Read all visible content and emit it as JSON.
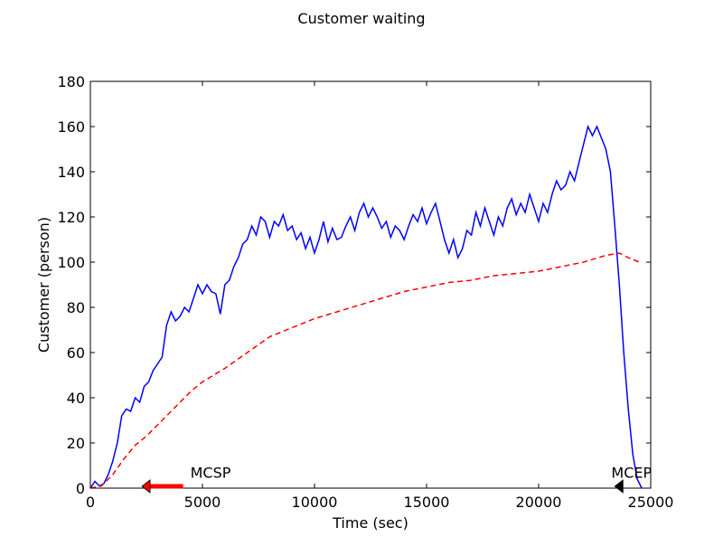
{
  "chart_data": {
    "type": "line",
    "title": "Customer waiting",
    "xlabel": "Time (sec)",
    "ylabel": "Customer (person)",
    "xlim": [
      0,
      25000
    ],
    "ylim": [
      0,
      180
    ],
    "grid": false,
    "x_ticks": [
      0,
      5000,
      10000,
      15000,
      20000,
      25000
    ],
    "y_ticks": [
      0,
      20,
      40,
      60,
      80,
      100,
      120,
      140,
      160,
      180
    ],
    "series": [
      {
        "color": "#0000ff",
        "style": "solid",
        "points": [
          [
            0,
            0
          ],
          [
            200,
            3
          ],
          [
            400,
            1
          ],
          [
            600,
            2
          ],
          [
            800,
            6
          ],
          [
            1000,
            12
          ],
          [
            1200,
            20
          ],
          [
            1400,
            32
          ],
          [
            1600,
            35
          ],
          [
            1800,
            34
          ],
          [
            2000,
            40
          ],
          [
            2200,
            38
          ],
          [
            2400,
            45
          ],
          [
            2600,
            47
          ],
          [
            2800,
            52
          ],
          [
            3000,
            55
          ],
          [
            3200,
            58
          ],
          [
            3400,
            72
          ],
          [
            3600,
            78
          ],
          [
            3800,
            74
          ],
          [
            4000,
            76
          ],
          [
            4200,
            80
          ],
          [
            4400,
            78
          ],
          [
            4600,
            84
          ],
          [
            4800,
            90
          ],
          [
            5000,
            86
          ],
          [
            5200,
            90
          ],
          [
            5400,
            87
          ],
          [
            5600,
            86
          ],
          [
            5800,
            77
          ],
          [
            6000,
            90
          ],
          [
            6200,
            92
          ],
          [
            6400,
            98
          ],
          [
            6600,
            102
          ],
          [
            6800,
            108
          ],
          [
            7000,
            110
          ],
          [
            7200,
            116
          ],
          [
            7400,
            112
          ],
          [
            7600,
            120
          ],
          [
            7800,
            118
          ],
          [
            8000,
            111
          ],
          [
            8200,
            118
          ],
          [
            8400,
            116
          ],
          [
            8600,
            121
          ],
          [
            8800,
            114
          ],
          [
            9000,
            116
          ],
          [
            9200,
            110
          ],
          [
            9400,
            113
          ],
          [
            9600,
            106
          ],
          [
            9800,
            111
          ],
          [
            10000,
            104
          ],
          [
            10200,
            110
          ],
          [
            10400,
            118
          ],
          [
            10600,
            109
          ],
          [
            10800,
            115
          ],
          [
            11000,
            110
          ],
          [
            11200,
            111
          ],
          [
            11400,
            116
          ],
          [
            11600,
            120
          ],
          [
            11800,
            114
          ],
          [
            12000,
            122
          ],
          [
            12200,
            126
          ],
          [
            12400,
            120
          ],
          [
            12600,
            124
          ],
          [
            12800,
            120
          ],
          [
            13000,
            115
          ],
          [
            13200,
            118
          ],
          [
            13400,
            111
          ],
          [
            13600,
            116
          ],
          [
            13800,
            114
          ],
          [
            14000,
            110
          ],
          [
            14200,
            116
          ],
          [
            14400,
            121
          ],
          [
            14600,
            118
          ],
          [
            14800,
            124
          ],
          [
            15000,
            117
          ],
          [
            15200,
            122
          ],
          [
            15400,
            126
          ],
          [
            15600,
            118
          ],
          [
            15800,
            110
          ],
          [
            16000,
            104
          ],
          [
            16200,
            110
          ],
          [
            16400,
            102
          ],
          [
            16600,
            106
          ],
          [
            16800,
            114
          ],
          [
            17000,
            112
          ],
          [
            17200,
            122
          ],
          [
            17400,
            116
          ],
          [
            17600,
            124
          ],
          [
            17800,
            118
          ],
          [
            18000,
            112
          ],
          [
            18200,
            120
          ],
          [
            18400,
            116
          ],
          [
            18600,
            124
          ],
          [
            18800,
            128
          ],
          [
            19000,
            121
          ],
          [
            19200,
            126
          ],
          [
            19400,
            122
          ],
          [
            19600,
            130
          ],
          [
            19800,
            124
          ],
          [
            20000,
            118
          ],
          [
            20200,
            126
          ],
          [
            20400,
            122
          ],
          [
            20600,
            130
          ],
          [
            20800,
            136
          ],
          [
            21000,
            132
          ],
          [
            21200,
            134
          ],
          [
            21400,
            140
          ],
          [
            21600,
            136
          ],
          [
            21800,
            144
          ],
          [
            22000,
            152
          ],
          [
            22200,
            160
          ],
          [
            22400,
            156
          ],
          [
            22600,
            160
          ],
          [
            22800,
            155
          ],
          [
            23000,
            150
          ],
          [
            23200,
            140
          ],
          [
            23400,
            116
          ],
          [
            23600,
            90
          ],
          [
            23800,
            60
          ],
          [
            24000,
            35
          ],
          [
            24200,
            15
          ],
          [
            24400,
            4
          ],
          [
            24600,
            0
          ]
        ]
      },
      {
        "color": "#ff0000",
        "style": "dashed",
        "points": [
          [
            0,
            0
          ],
          [
            500,
            1
          ],
          [
            1000,
            6
          ],
          [
            1500,
            13
          ],
          [
            2000,
            19
          ],
          [
            2500,
            23
          ],
          [
            3000,
            28
          ],
          [
            3500,
            33
          ],
          [
            4000,
            38
          ],
          [
            4500,
            43
          ],
          [
            5000,
            47
          ],
          [
            6000,
            53
          ],
          [
            7000,
            60
          ],
          [
            8000,
            67
          ],
          [
            9000,
            71
          ],
          [
            10000,
            75
          ],
          [
            11000,
            78
          ],
          [
            12000,
            81
          ],
          [
            13000,
            84
          ],
          [
            14000,
            87
          ],
          [
            15000,
            89
          ],
          [
            16000,
            91
          ],
          [
            17000,
            92
          ],
          [
            18000,
            94
          ],
          [
            19000,
            95
          ],
          [
            20000,
            96
          ],
          [
            21000,
            98
          ],
          [
            22000,
            100
          ],
          [
            23000,
            103
          ],
          [
            23600,
            104
          ],
          [
            24000,
            102
          ],
          [
            24500,
            100
          ]
        ]
      }
    ],
    "annotations": [
      {
        "text": "MCSP",
        "x": 4300,
        "y": 3,
        "arrow_to": [
          2300,
          0
        ],
        "arrow_color": "#ff0000"
      },
      {
        "text": "MCEP",
        "x": 23000,
        "y": 3,
        "arrow_to": [
          23400,
          0
        ],
        "arrow_color": "#000000"
      }
    ]
  }
}
